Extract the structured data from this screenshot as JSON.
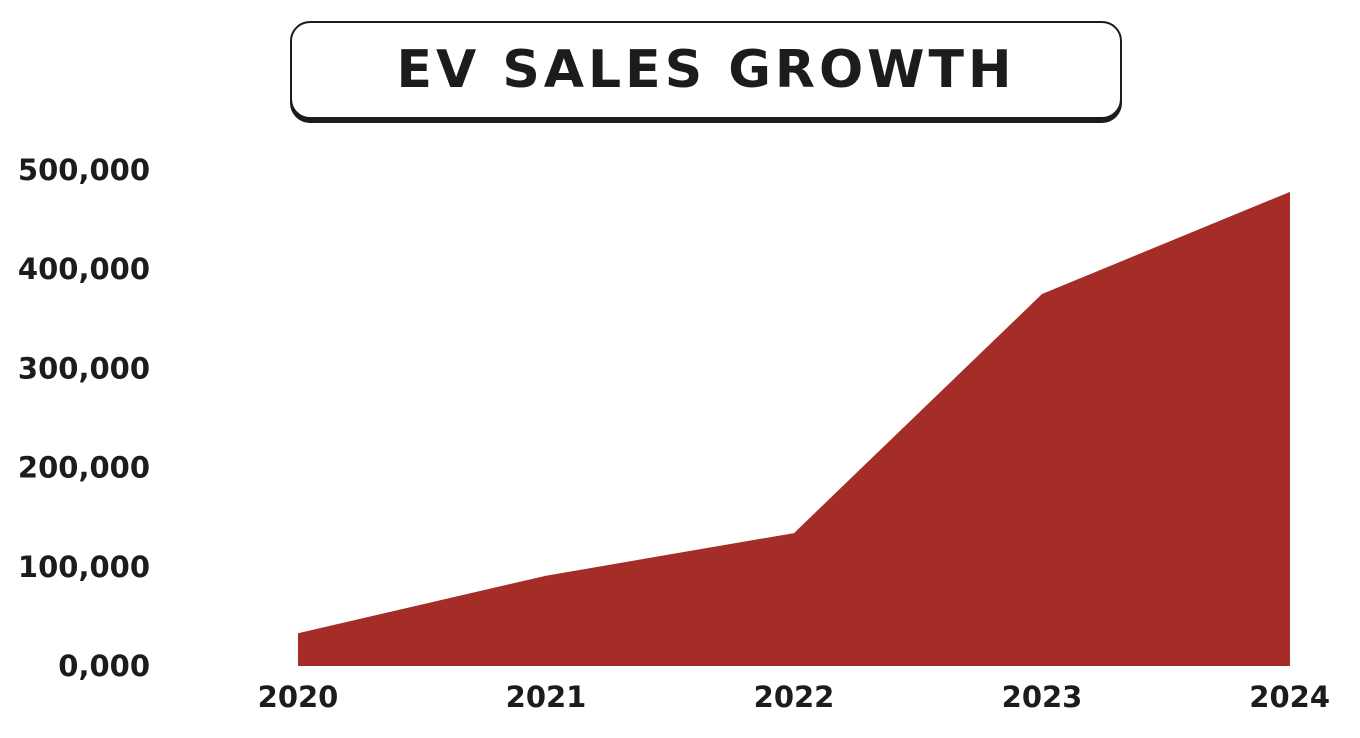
{
  "chart_data": {
    "type": "area",
    "title": "EV SALES GROWTH",
    "x": [
      "2020",
      "2021",
      "2022",
      "2023",
      "2024"
    ],
    "series": [
      {
        "values": [
          33000,
          91000,
          134000,
          375000,
          478000
        ]
      }
    ],
    "yticks": [
      "0,000",
      "100,000",
      "200,000",
      "300,000",
      "400,000",
      "500,000"
    ],
    "ytick_values": [
      0,
      100000,
      200000,
      300000,
      400000,
      500000
    ],
    "ylim": [
      0,
      500000
    ],
    "grid": false,
    "colors": {
      "fill": "#a52d27",
      "text": "#1c1c1c"
    }
  }
}
